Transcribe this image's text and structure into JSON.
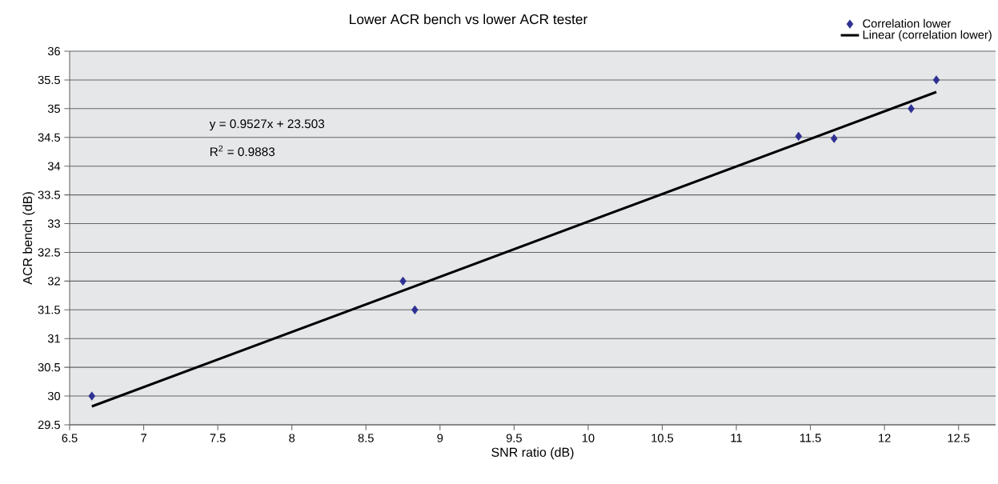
{
  "chart_data": {
    "type": "scatter",
    "title": "Lower ACR bench vs lower ACR tester",
    "xlabel": "SNR ratio (dB)",
    "ylabel": "ACR bench (dB)",
    "series": [
      {
        "name": "Correlation lower",
        "color": "#2e3192",
        "marker": "diamond",
        "x": [
          6.65,
          8.75,
          8.83,
          11.42,
          11.66,
          12.18,
          12.35
        ],
        "values": [
          30,
          32,
          31.5,
          34.52,
          34.48,
          35,
          35.5
        ]
      },
      {
        "name": "Linear (correlation lower)",
        "type": "line",
        "color": "#000000",
        "x": [
          6.65,
          12.35
        ],
        "values": [
          29.82,
          35.29
        ]
      }
    ],
    "xlim": [
      6.5,
      12.75
    ],
    "xticks": [
      6.5,
      7,
      7.5,
      8,
      8.5,
      9,
      9.5,
      10,
      10.5,
      11,
      11.5,
      12,
      12.5
    ],
    "ylim": [
      29.5,
      36
    ],
    "yticks": [
      29.5,
      30,
      30.5,
      31,
      31.5,
      32,
      32.5,
      33,
      33.5,
      34,
      34.5,
      35,
      35.5,
      36
    ],
    "grid": "y",
    "legend": "top right",
    "annotations": [
      "y = 0.9527x + 23.503",
      "R$^{2}$ = 0.9883"
    ]
  }
}
